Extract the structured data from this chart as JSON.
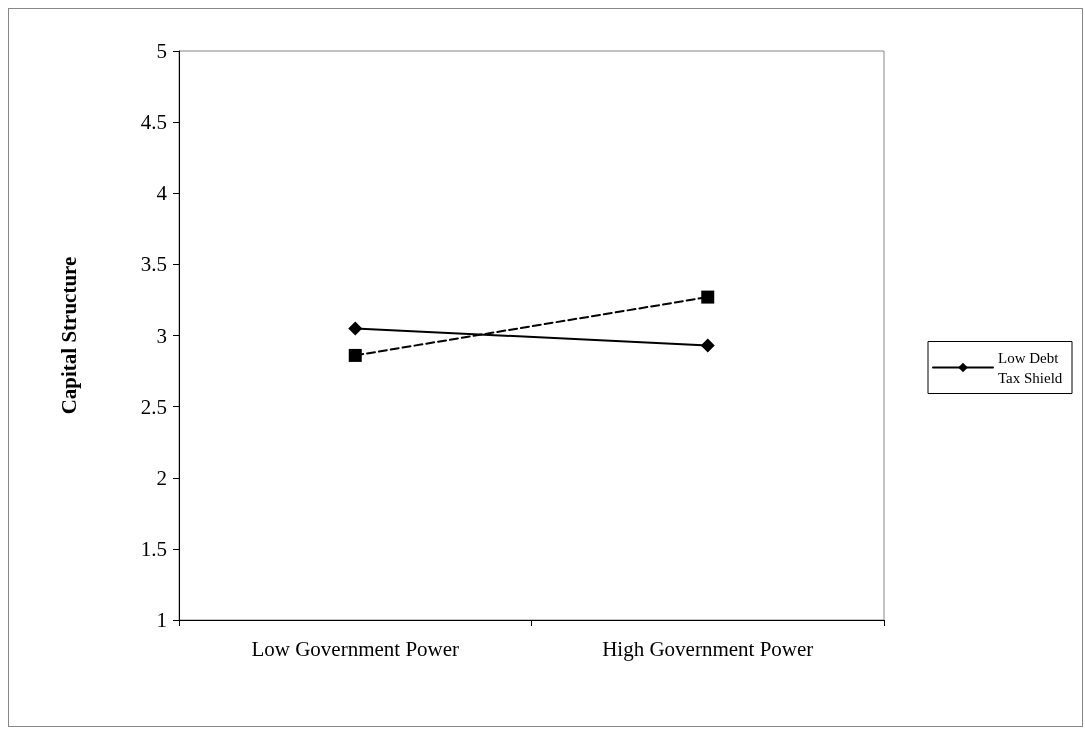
{
  "chart_data": {
    "type": "line",
    "ylabel": "Capital Structure",
    "categories": [
      "Low Government Power",
      "High Government Power"
    ],
    "series": [
      {
        "name": "Low Debt Tax Shield",
        "color": "#000000",
        "values": [
          3.05,
          2.93
        ],
        "marker": "diamond",
        "line_style": "solid"
      },
      {
        "color": "#000000",
        "values": [
          2.86,
          3.27
        ],
        "marker": "square",
        "line_style": "dashed"
      }
    ],
    "ylim": [
      1,
      5
    ],
    "yticks": [
      1,
      1.5,
      2,
      2.5,
      3,
      3.5,
      4,
      4.5,
      5
    ],
    "grid": false,
    "legend": "right"
  }
}
